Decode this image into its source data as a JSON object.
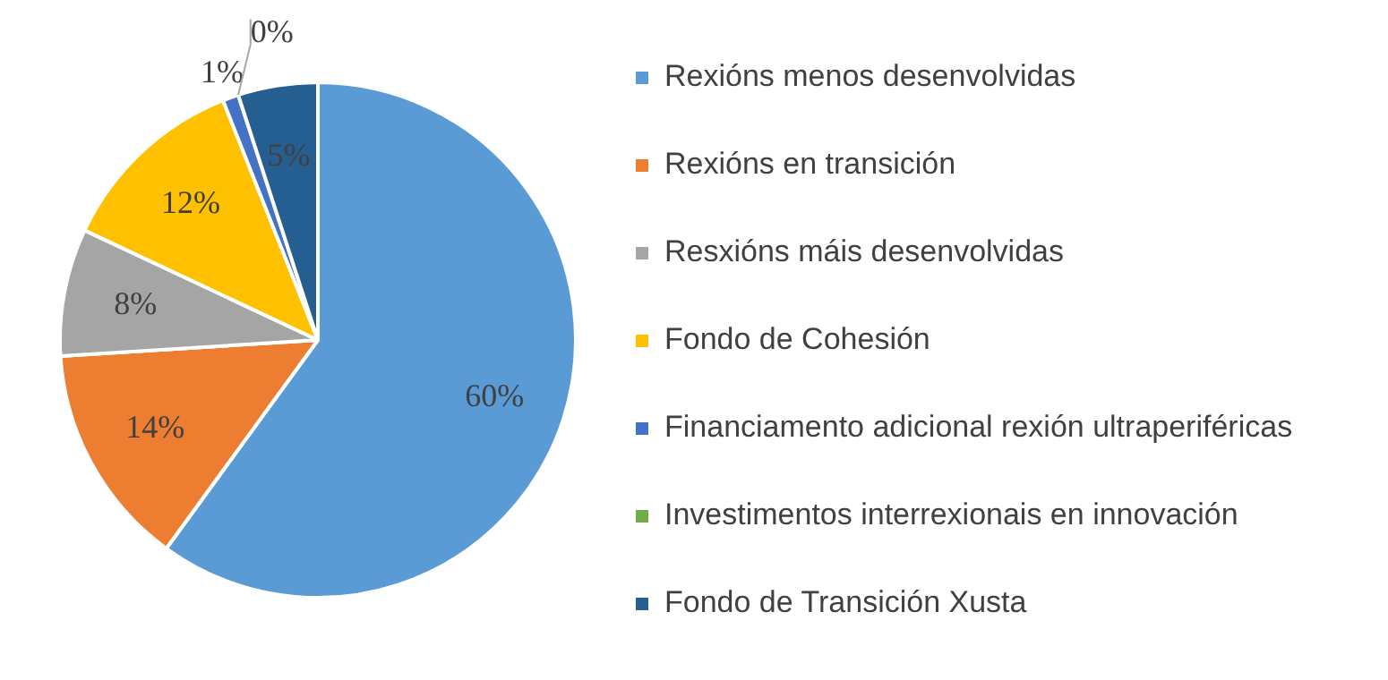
{
  "chart_data": {
    "type": "pie",
    "categories": [
      "Rexións menos desenvolvidas",
      "Rexións en transición",
      "Resxións máis desenvolvidas",
      "Fondo de Cohesión",
      "Financiamento adicional rexión ultraperiféricas",
      "Investimentos interrexionais en innovación",
      "Fondo de Transición Xusta"
    ],
    "values": [
      60,
      14,
      8,
      12,
      1,
      0,
      5
    ],
    "value_labels": [
      "60%",
      "14%",
      "8%",
      "12%",
      "1%",
      "0%",
      "5%"
    ],
    "colors": [
      "#5b9bd5",
      "#ed7d31",
      "#a5a5a5",
      "#ffc000",
      "#4472c4",
      "#70ad47",
      "#255e91"
    ],
    "legend": "right"
  }
}
